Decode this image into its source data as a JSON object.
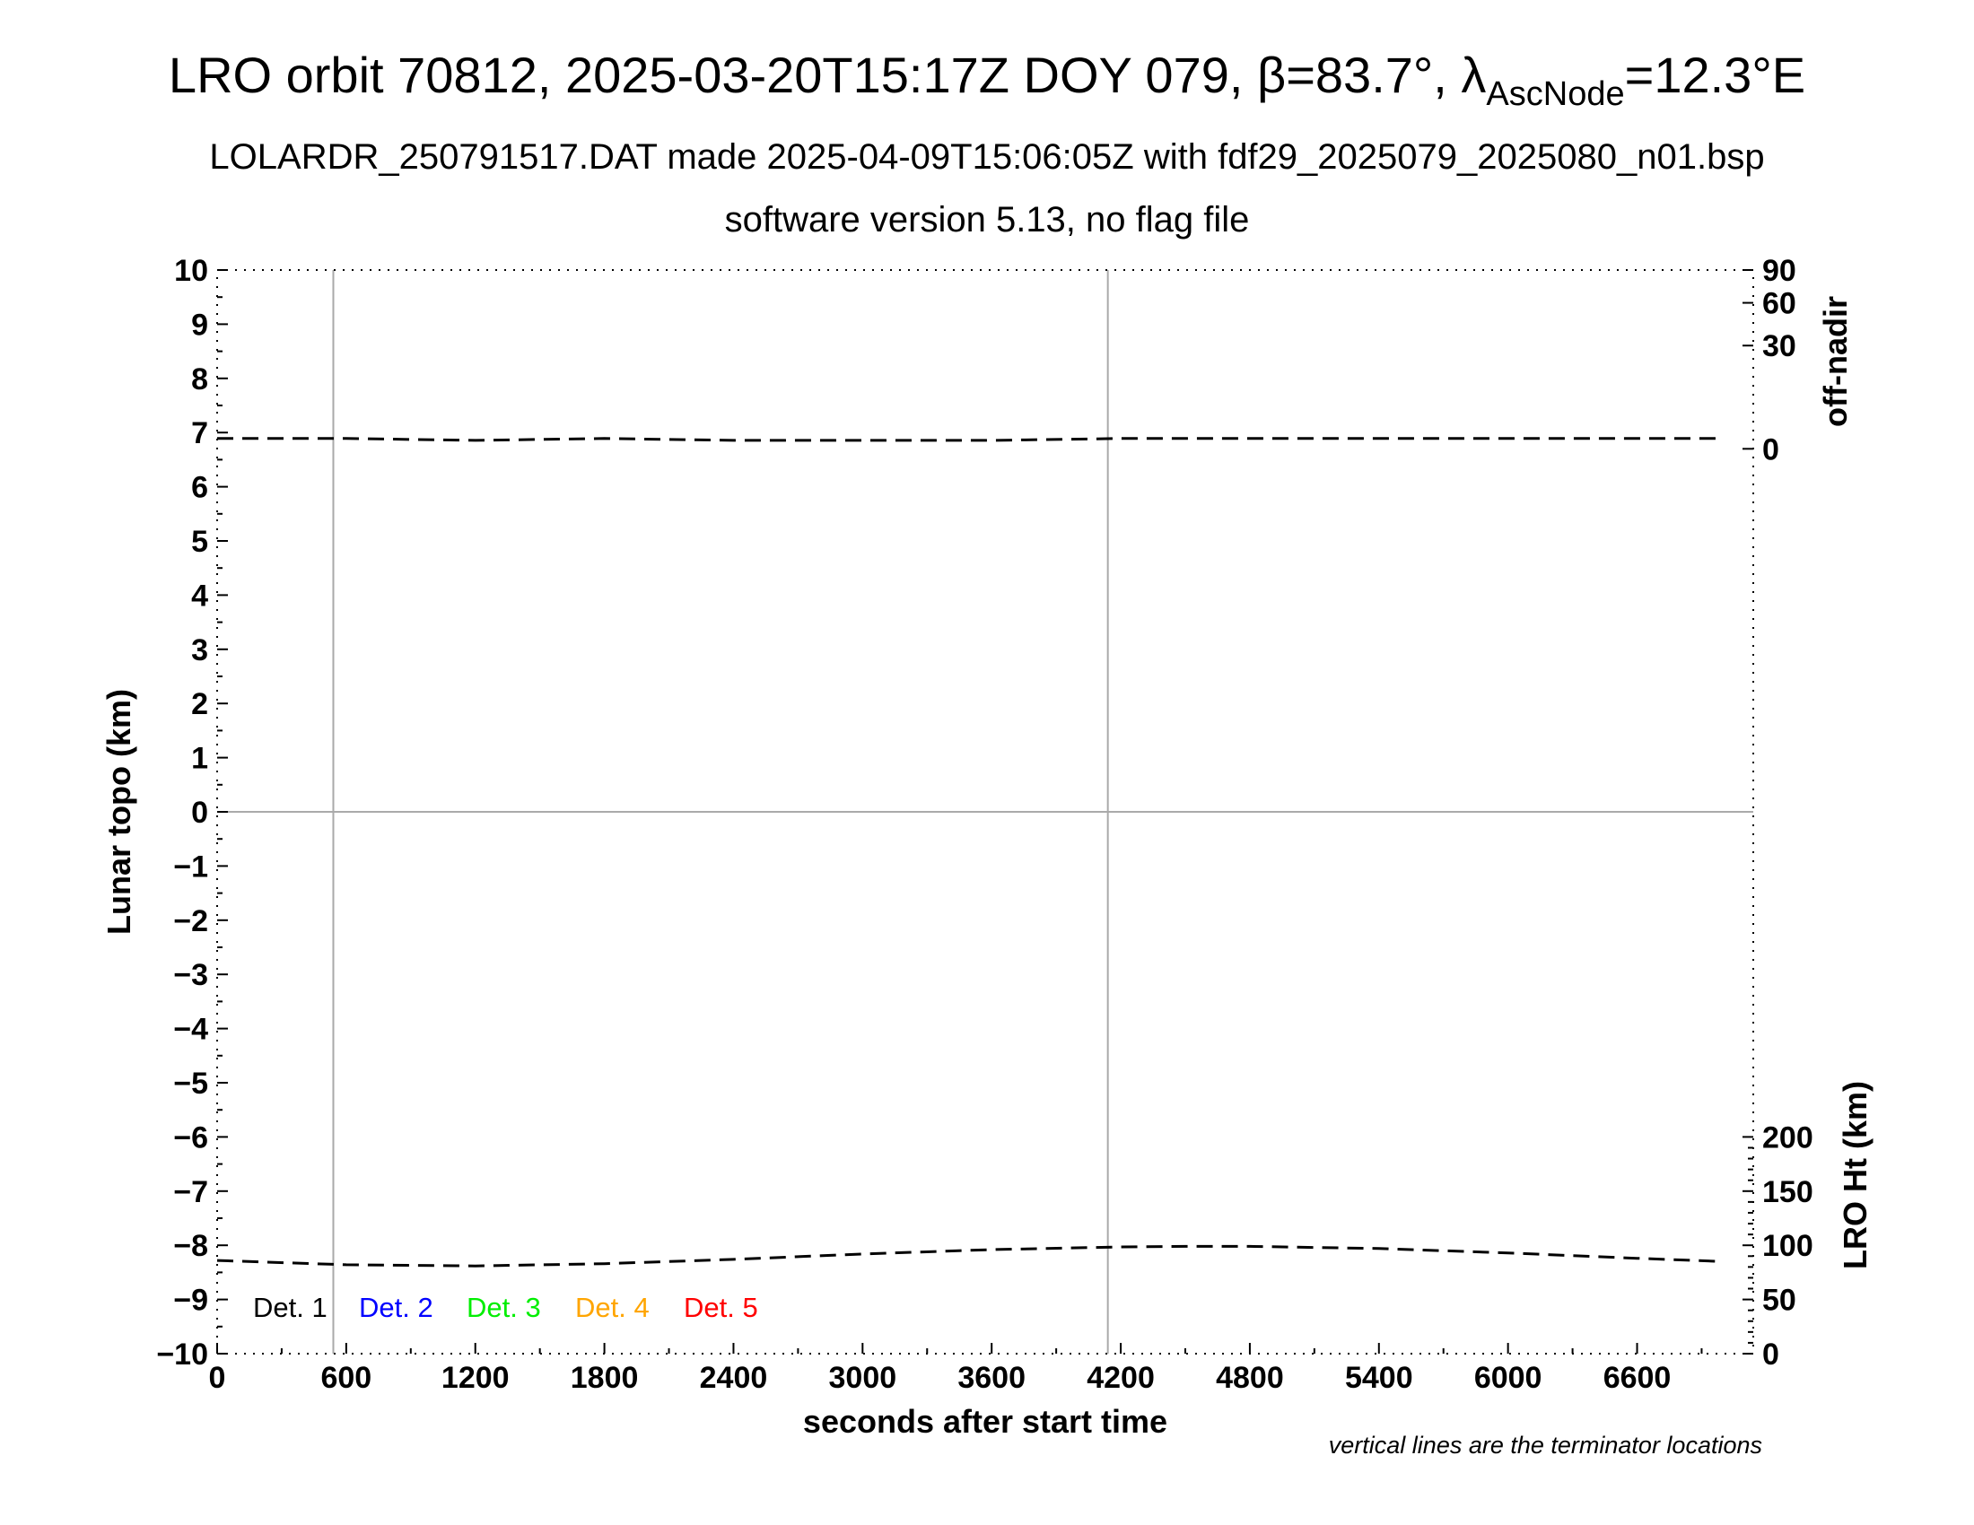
{
  "chart_data": {
    "type": "line",
    "title": {
      "prefix": "LRO orbit 70812, 2025-03-20T15:17Z DOY 079, ",
      "beta_symbol": "β",
      "beta_value": "=83.7°, ",
      "lambda_symbol": "λ",
      "lambda_subscript": "AscNode",
      "lambda_value": "=12.3°E"
    },
    "subtitle": "LOLARDR_250791517.DAT made 2025-04-09T15:06:05Z with fdf29_2025079_2025080_n01.bsp",
    "subtitle2": "software version 5.13, no flag file",
    "xlabel": "seconds after start time",
    "ylabel": "Lunar topo (km)",
    "y2label_top": "off-nadir",
    "y2label_bottom": "LRO Ht (km)",
    "footnote": "vertical lines are the terminator locations",
    "xlim": [
      0,
      7140
    ],
    "ylim": [
      -10,
      10
    ],
    "x_ticks": [
      0,
      600,
      1200,
      1800,
      2400,
      3000,
      3600,
      4200,
      4800,
      5400,
      6000,
      6600
    ],
    "x_tick_labels": [
      "0",
      "600",
      "1200",
      "1800",
      "2400",
      "3000",
      "3600",
      "4200",
      "4800",
      "5400",
      "6000",
      "6600"
    ],
    "y_ticks": [
      10,
      9,
      8,
      7,
      6,
      5,
      4,
      3,
      2,
      1,
      0,
      -1,
      -2,
      -3,
      -4,
      -5,
      -6,
      -7,
      -8,
      -9,
      -10
    ],
    "y_tick_labels": [
      "10",
      "9",
      "8",
      "7",
      "6",
      "5",
      "4",
      "3",
      "2",
      "1",
      "0",
      "−1",
      "−2",
      "−3",
      "−4",
      "−5",
      "−6",
      "−7",
      "−8",
      "−9",
      "−10"
    ],
    "off_nadir_axis": {
      "ticks": [
        90,
        60,
        30,
        0
      ],
      "tick_labels": [
        "90",
        "60",
        "30",
        "0"
      ],
      "topo_at_zero": 6.7,
      "topo_at_90": 10
    },
    "lro_ht_axis": {
      "ticks": [
        200,
        150,
        100,
        50,
        0
      ],
      "tick_labels": [
        "200",
        "150",
        "100",
        "50",
        "0"
      ],
      "topo_at_zero": -10,
      "km_per_topo_km": 50
    },
    "terminator_lines_x": [
      540,
      4140
    ],
    "zero_line_y": 0,
    "series": [
      {
        "line": "off-nadir",
        "color": "#000000",
        "style": "dashed",
        "x": [
          0,
          600,
          1200,
          1800,
          2400,
          3000,
          3600,
          4200,
          4800,
          5400,
          6000,
          6600,
          7000
        ],
        "y": [
          0.3,
          0.3,
          0.2,
          0.3,
          0.2,
          0.2,
          0.2,
          0.3,
          0.3,
          0.3,
          0.3,
          0.3,
          0.3
        ]
      },
      {
        "line": "LRO Ht",
        "color": "#000000",
        "style": "dashed",
        "x": [
          0,
          600,
          1200,
          1800,
          2400,
          3000,
          3600,
          4200,
          4500,
          4800,
          5400,
          6000,
          6600,
          7000
        ],
        "y": [
          86,
          82,
          81,
          83,
          87,
          92,
          96,
          98.5,
          99,
          99,
          97,
          93,
          88,
          85
        ]
      }
    ],
    "legend": {
      "placement": "bottom-left",
      "entries": [
        {
          "label": "Det. 1",
          "color": "#000000"
        },
        {
          "label": "Det. 2",
          "color": "#0000ff"
        },
        {
          "label": "Det. 3",
          "color": "#00ee00"
        },
        {
          "label": "Det. 4",
          "color": "#ffa500"
        },
        {
          "label": "Det. 5",
          "color": "#ff0000"
        }
      ]
    },
    "colors": {
      "grid": "#aaaaaa",
      "axis": "#000000"
    }
  }
}
